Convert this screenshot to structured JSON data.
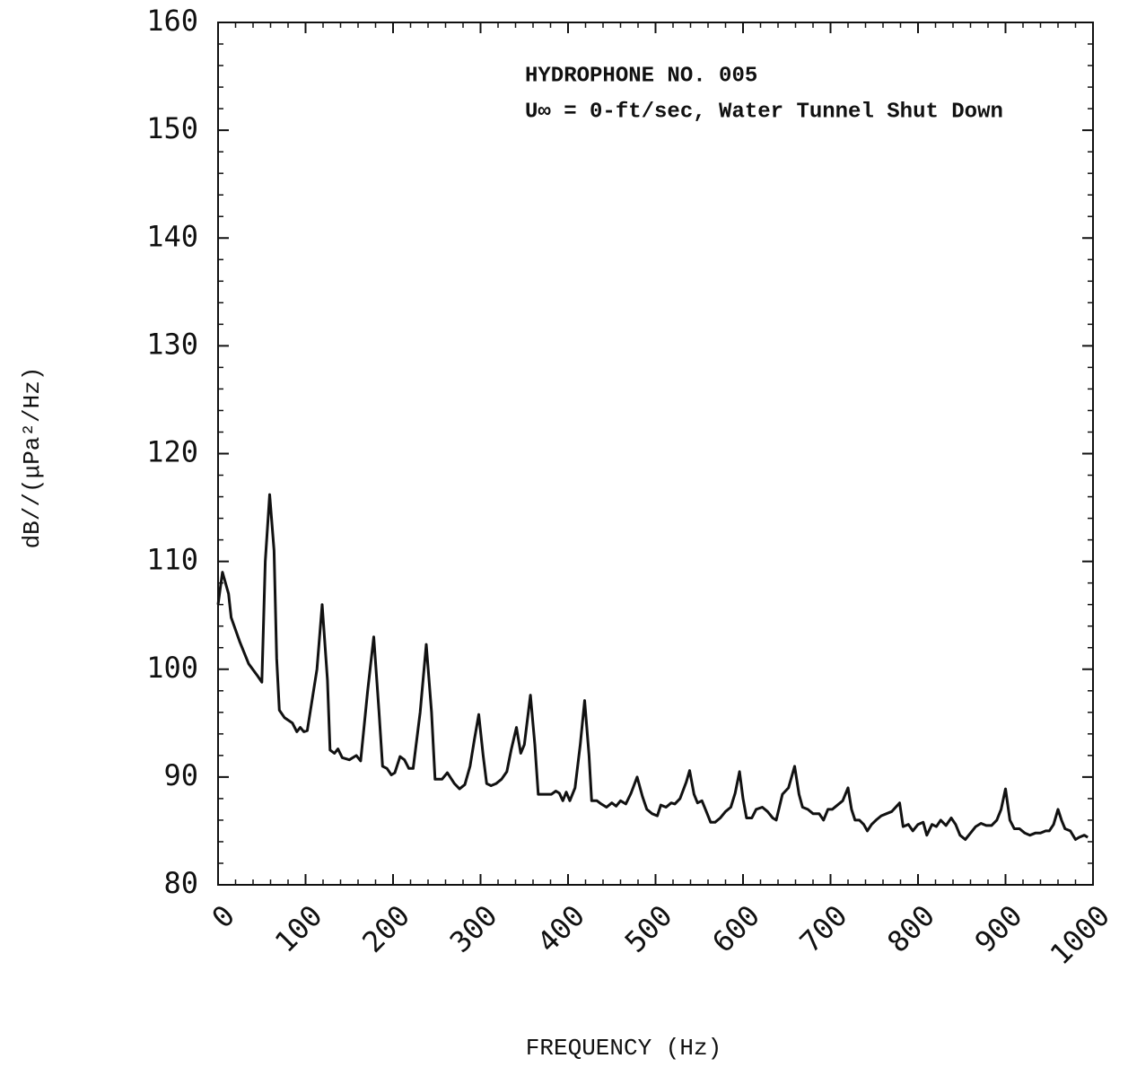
{
  "chart_data": {
    "type": "line",
    "annotations": [
      "HYDROPHONE NO. 005",
      "U∞ = 0-ft/sec, Water Tunnel Shut Down"
    ],
    "xlabel": "FREQUENCY (Hz)",
    "ylabel": "dB//(μPa²/Hz)",
    "xlim": [
      0,
      1000
    ],
    "ylim": [
      80,
      160
    ],
    "xticks": [
      0,
      100,
      200,
      300,
      400,
      500,
      600,
      700,
      800,
      900,
      1000
    ],
    "yticks": [
      80,
      90,
      100,
      110,
      120,
      130,
      140,
      150,
      160
    ],
    "color": "#111111",
    "x": [
      0,
      5,
      12,
      15,
      25,
      35,
      45,
      50,
      54,
      59,
      64,
      67,
      70,
      76,
      85,
      90,
      94,
      98,
      102,
      113,
      119,
      125,
      128,
      133,
      137,
      142,
      150,
      158,
      163,
      171,
      178,
      184,
      188,
      193,
      198,
      202,
      208,
      213,
      218,
      223,
      231,
      238,
      244,
      248,
      256,
      262,
      270,
      276,
      282,
      288,
      293,
      298,
      303,
      307,
      312,
      318,
      324,
      330,
      335,
      341,
      346,
      350,
      357,
      362,
      366,
      374,
      381,
      386,
      390,
      394,
      398,
      402,
      408,
      414,
      419,
      424,
      427,
      433,
      438,
      444,
      450,
      455,
      460,
      466,
      472,
      479,
      485,
      490,
      496,
      502,
      506,
      512,
      518,
      522,
      528,
      535,
      539,
      544,
      548,
      553,
      558,
      563,
      568,
      574,
      580,
      586,
      591,
      596,
      600,
      604,
      610,
      615,
      622,
      628,
      634,
      638,
      645,
      652,
      659,
      664,
      668,
      674,
      680,
      687,
      692,
      697,
      702,
      708,
      714,
      720,
      724,
      728,
      733,
      738,
      742,
      747,
      752,
      758,
      764,
      770,
      779,
      783,
      789,
      794,
      800,
      806,
      810,
      816,
      821,
      826,
      832,
      838,
      843,
      848,
      854,
      860,
      866,
      872,
      878,
      884,
      890,
      895,
      900,
      905,
      910,
      916,
      922,
      928,
      934,
      940,
      946,
      950,
      955,
      960,
      964,
      968,
      974,
      980,
      984,
      990,
      994
    ],
    "values": [
      106,
      109,
      107,
      104.8,
      102.5,
      100.5,
      99.4,
      98.8,
      110,
      116.2,
      111,
      101,
      96.2,
      95.5,
      95,
      94.2,
      94.6,
      94.2,
      94.3,
      100,
      106,
      99,
      92.5,
      92.2,
      92.6,
      91.8,
      91.6,
      92,
      91.5,
      98,
      103,
      96,
      91,
      90.8,
      90.2,
      90.4,
      91.9,
      91.6,
      90.8,
      90.8,
      96,
      102.3,
      96,
      89.8,
      89.8,
      90.4,
      89.4,
      88.9,
      89.3,
      91,
      93.5,
      95.8,
      92,
      89.4,
      89.2,
      89.4,
      89.8,
      90.5,
      92.5,
      94.6,
      92.2,
      93,
      97.6,
      93,
      88.4,
      88.4,
      88.4,
      88.7,
      88.5,
      87.8,
      88.6,
      87.8,
      89,
      93,
      97.1,
      92,
      87.8,
      87.8,
      87.5,
      87.2,
      87.6,
      87.3,
      87.8,
      87.5,
      88.5,
      90,
      88.2,
      87,
      86.6,
      86.4,
      87.4,
      87.2,
      87.6,
      87.5,
      88,
      89.5,
      90.6,
      88.4,
      87.6,
      87.8,
      86.8,
      85.8,
      85.8,
      86.2,
      86.8,
      87.2,
      88.5,
      90.5,
      88,
      86.2,
      86.2,
      87,
      87.2,
      86.8,
      86.2,
      86,
      88.4,
      89,
      91,
      88.4,
      87.2,
      87,
      86.6,
      86.6,
      86,
      87,
      87,
      87.4,
      87.8,
      89,
      87,
      86,
      86,
      85.6,
      85,
      85.6,
      86,
      86.4,
      86.6,
      86.8,
      87.6,
      85.4,
      85.6,
      85,
      85.6,
      85.8,
      84.6,
      85.6,
      85.4,
      86,
      85.5,
      86.2,
      85.6,
      84.6,
      84.2,
      84.8,
      85.4,
      85.7,
      85.5,
      85.5,
      86,
      87,
      88.9,
      86,
      85.2,
      85.2,
      84.8,
      84.6,
      84.8,
      84.8,
      85,
      85,
      85.6,
      87,
      86,
      85.2,
      85,
      84.2,
      84.4,
      84.6,
      84.4
    ]
  }
}
